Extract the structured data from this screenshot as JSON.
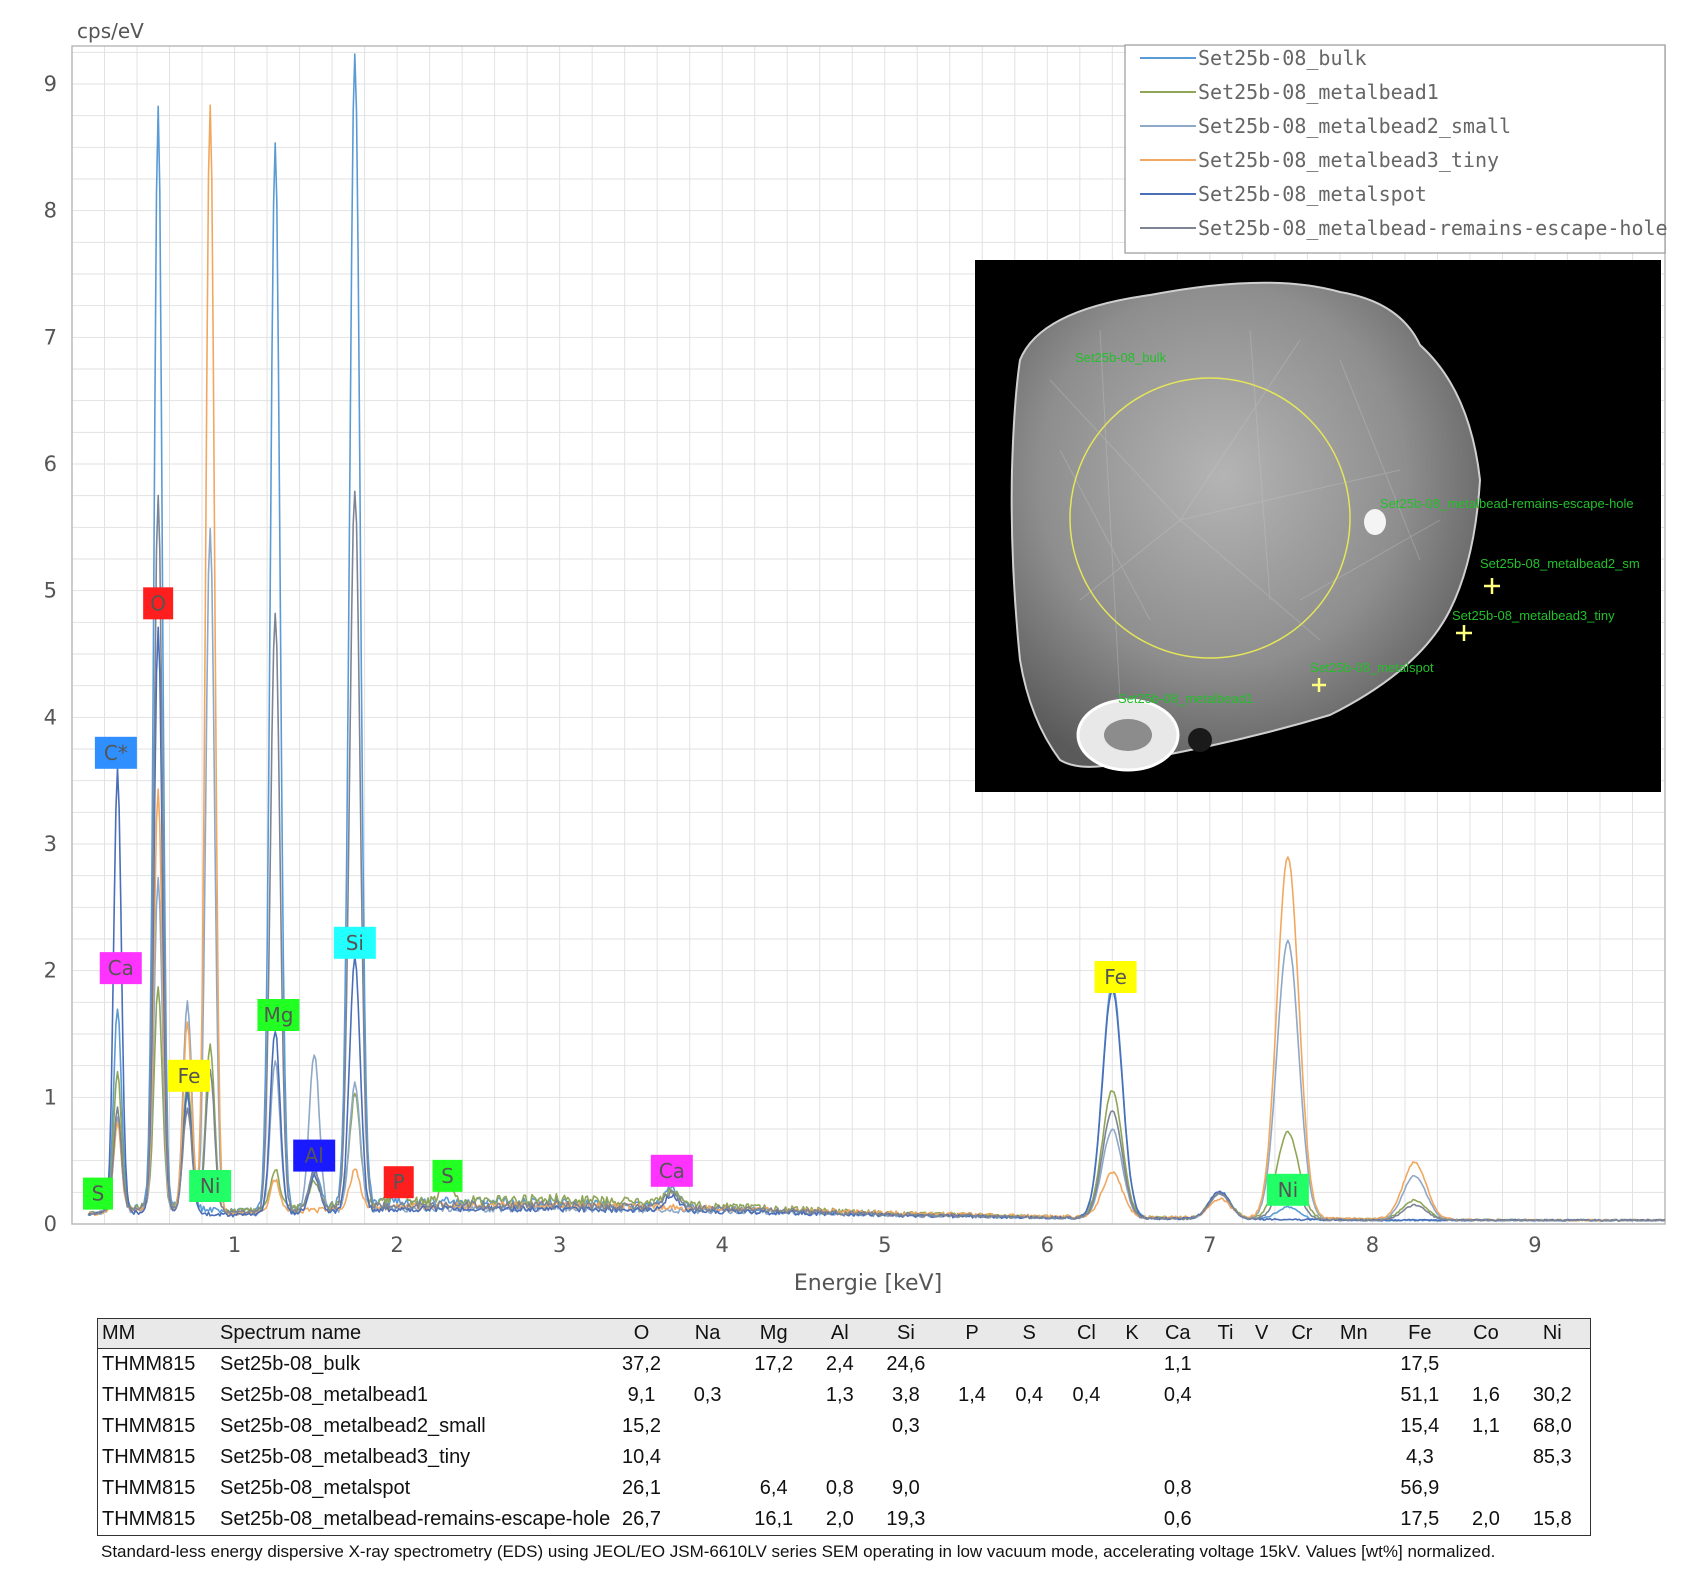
{
  "colors": {
    "series": [
      "#5b9bd5",
      "#8fa558",
      "#8ea8c8",
      "#f0a860",
      "#4a6fb8",
      "#7d8595"
    ],
    "labels": {
      "O": "#ff1e1e",
      "C*": "#2f8fff",
      "Ca": "#ff33ff",
      "Fe": "#ffff00",
      "Mg": "#22ff22",
      "Si": "#22ffff",
      "Al": "#1a1aff",
      "P": "#ff1e1e",
      "S": "#22ff22",
      "Ni": "#22ff66"
    }
  },
  "chart_data": {
    "type": "line",
    "ylabel": "cps/eV",
    "xlabel": "Energie [keV]",
    "xlim": [
      0.0,
      9.8
    ],
    "ylim": [
      0,
      9.3
    ],
    "xticks": [
      1,
      2,
      3,
      4,
      5,
      6,
      7,
      8,
      9
    ],
    "yticks": [
      0,
      1,
      2,
      3,
      4,
      5,
      6,
      7,
      8,
      9
    ],
    "grid": true,
    "legend_position": "top-right",
    "series": [
      {
        "name": "Set25b-08_bulk",
        "baseline": [
          [
            0.1,
            0.08
          ],
          [
            0.5,
            0.15
          ],
          [
            1.0,
            0.1
          ],
          [
            2.0,
            0.18
          ],
          [
            3.0,
            0.17
          ],
          [
            4.0,
            0.12
          ],
          [
            5.0,
            0.08
          ],
          [
            6.0,
            0.05
          ],
          [
            7.0,
            0.04
          ],
          [
            8.0,
            0.03
          ],
          [
            9.0,
            0.03
          ],
          [
            9.8,
            0.03
          ]
        ],
        "peaks": [
          [
            0.28,
            1.6
          ],
          [
            0.53,
            8.65
          ],
          [
            0.71,
            0.9
          ],
          [
            1.25,
            8.4
          ],
          [
            1.49,
            0.3
          ],
          [
            1.74,
            9.05
          ],
          [
            3.69,
            0.15
          ],
          [
            6.4,
            1.85
          ],
          [
            7.06,
            0.2
          ],
          [
            7.48,
            0.1
          ]
        ]
      },
      {
        "name": "Set25b-08_metalbead1",
        "baseline": [
          [
            0.1,
            0.08
          ],
          [
            0.5,
            0.15
          ],
          [
            1.0,
            0.1
          ],
          [
            2.0,
            0.18
          ],
          [
            3.0,
            0.2
          ],
          [
            4.0,
            0.14
          ],
          [
            5.0,
            0.09
          ],
          [
            6.0,
            0.06
          ],
          [
            7.0,
            0.05
          ],
          [
            8.0,
            0.04
          ],
          [
            9.0,
            0.03
          ],
          [
            9.8,
            0.03
          ]
        ],
        "peaks": [
          [
            0.28,
            1.1
          ],
          [
            0.53,
            1.7
          ],
          [
            0.71,
            1.0
          ],
          [
            0.85,
            1.3
          ],
          [
            1.25,
            0.3
          ],
          [
            1.49,
            0.2
          ],
          [
            1.74,
            0.85
          ],
          [
            2.01,
            0.12
          ],
          [
            2.31,
            0.15
          ],
          [
            3.69,
            0.1
          ],
          [
            6.4,
            1.0
          ],
          [
            7.06,
            0.2
          ],
          [
            7.48,
            0.68
          ],
          [
            8.26,
            0.15
          ]
        ]
      },
      {
        "name": "Set25b-08_metalbead2_small",
        "baseline": [
          [
            0.1,
            0.08
          ],
          [
            0.5,
            0.12
          ],
          [
            1.0,
            0.08
          ],
          [
            2.0,
            0.12
          ],
          [
            3.0,
            0.12
          ],
          [
            4.0,
            0.1
          ],
          [
            5.0,
            0.07
          ],
          [
            6.0,
            0.05
          ],
          [
            7.0,
            0.04
          ],
          [
            8.0,
            0.03
          ],
          [
            9.0,
            0.03
          ],
          [
            9.8,
            0.03
          ]
        ],
        "peaks": [
          [
            0.28,
            0.75
          ],
          [
            0.53,
            2.6
          ],
          [
            0.71,
            1.65
          ],
          [
            0.85,
            5.4
          ],
          [
            1.25,
            1.2
          ],
          [
            1.49,
            1.25
          ],
          [
            1.74,
            1.0
          ],
          [
            6.4,
            0.7
          ],
          [
            7.06,
            0.2
          ],
          [
            7.48,
            2.2
          ],
          [
            8.26,
            0.35
          ]
        ]
      },
      {
        "name": "Set25b-08_metalbead3_tiny",
        "baseline": [
          [
            0.1,
            0.08
          ],
          [
            0.5,
            0.12
          ],
          [
            1.0,
            0.08
          ],
          [
            2.0,
            0.14
          ],
          [
            3.0,
            0.15
          ],
          [
            4.0,
            0.12
          ],
          [
            5.0,
            0.09
          ],
          [
            6.0,
            0.06
          ],
          [
            7.0,
            0.05
          ],
          [
            8.0,
            0.04
          ],
          [
            9.0,
            0.03
          ],
          [
            9.8,
            0.03
          ]
        ],
        "peaks": [
          [
            0.28,
            0.7
          ],
          [
            0.53,
            3.3
          ],
          [
            0.71,
            1.5
          ],
          [
            0.85,
            8.75
          ],
          [
            1.25,
            0.25
          ],
          [
            1.74,
            0.3
          ],
          [
            6.4,
            0.35
          ],
          [
            7.06,
            0.15
          ],
          [
            7.48,
            2.85
          ],
          [
            8.26,
            0.45
          ]
        ]
      },
      {
        "name": "Set25b-08_metalspot",
        "baseline": [
          [
            0.1,
            0.08
          ],
          [
            0.5,
            0.1
          ],
          [
            1.0,
            0.07
          ],
          [
            2.0,
            0.12
          ],
          [
            3.0,
            0.12
          ],
          [
            4.0,
            0.1
          ],
          [
            5.0,
            0.07
          ],
          [
            6.0,
            0.05
          ],
          [
            7.0,
            0.04
          ],
          [
            8.0,
            0.03
          ],
          [
            9.0,
            0.03
          ],
          [
            9.8,
            0.03
          ]
        ],
        "peaks": [
          [
            0.28,
            3.5
          ],
          [
            0.53,
            4.6
          ],
          [
            0.71,
            0.95
          ],
          [
            1.25,
            1.45
          ],
          [
            1.49,
            0.3
          ],
          [
            1.74,
            2.0
          ],
          [
            3.69,
            0.12
          ],
          [
            6.4,
            1.8
          ],
          [
            7.06,
            0.22
          ]
        ]
      },
      {
        "name": "Set25b-08_metalbead-remains-escape-hole",
        "baseline": [
          [
            0.1,
            0.08
          ],
          [
            0.5,
            0.14
          ],
          [
            1.0,
            0.09
          ],
          [
            2.0,
            0.15
          ],
          [
            3.0,
            0.15
          ],
          [
            4.0,
            0.12
          ],
          [
            5.0,
            0.08
          ],
          [
            6.0,
            0.05
          ],
          [
            7.0,
            0.04
          ],
          [
            8.0,
            0.03
          ],
          [
            9.0,
            0.03
          ],
          [
            9.8,
            0.03
          ]
        ],
        "peaks": [
          [
            0.28,
            0.8
          ],
          [
            0.53,
            5.6
          ],
          [
            0.71,
            0.8
          ],
          [
            0.85,
            1.1
          ],
          [
            1.25,
            4.7
          ],
          [
            1.49,
            0.3
          ],
          [
            1.74,
            5.65
          ],
          [
            3.69,
            0.12
          ],
          [
            6.4,
            0.85
          ],
          [
            7.06,
            0.2
          ],
          [
            7.48,
            0.35
          ],
          [
            8.26,
            0.12
          ]
        ]
      }
    ],
    "peak_labels": [
      {
        "text": "O",
        "x": 0.53,
        "y": 4.9
      },
      {
        "text": "C*",
        "x": 0.27,
        "y": 3.72
      },
      {
        "text": "Ca",
        "x": 0.3,
        "y": 2.02
      },
      {
        "text": "Fe",
        "x": 0.72,
        "y": 1.17
      },
      {
        "text": "Mg",
        "x": 1.27,
        "y": 1.65
      },
      {
        "text": "Si",
        "x": 1.74,
        "y": 2.22
      },
      {
        "text": "Al",
        "x": 1.49,
        "y": 0.54
      },
      {
        "text": "P",
        "x": 2.01,
        "y": 0.33
      },
      {
        "text": "S",
        "x": 2.31,
        "y": 0.38
      },
      {
        "text": "S",
        "x": 0.16,
        "y": 0.24
      },
      {
        "text": "Ni",
        "x": 0.85,
        "y": 0.3
      },
      {
        "text": "Ca",
        "x": 3.69,
        "y": 0.42
      },
      {
        "text": "Fe",
        "x": 6.42,
        "y": 1.95
      },
      {
        "text": "Ni",
        "x": 7.48,
        "y": 0.27
      }
    ]
  },
  "sem_image": {
    "labels": [
      "Set25b-08_bulk",
      "Set25b-08_metalbead-remains-escape-hole",
      "Set25b-08_metalbead2_sm",
      "Set25b-08_metalbead3_tiny",
      "Set25b-08_metalspot",
      "Set25b-08_metalbead1"
    ]
  },
  "table": {
    "headers": [
      "MM",
      "Spectrum name",
      "O",
      "Na",
      "Mg",
      "Al",
      "Si",
      "P",
      "S",
      "Cl",
      "K",
      "Ca",
      "Ti",
      "V",
      "Cr",
      "Mn",
      "Fe",
      "Co",
      "Ni"
    ],
    "rows": [
      [
        "THMM815",
        "Set25b-08_bulk",
        "37,2",
        "",
        "17,2",
        "2,4",
        "24,6",
        "",
        "",
        "",
        "",
        "1,1",
        "",
        "",
        "",
        "",
        "17,5",
        "",
        ""
      ],
      [
        "THMM815",
        "Set25b-08_metalbead1",
        "9,1",
        "0,3",
        "",
        "1,3",
        "3,8",
        "1,4",
        "0,4",
        "0,4",
        "",
        "0,4",
        "",
        "",
        "",
        "",
        "51,1",
        "1,6",
        "30,2"
      ],
      [
        "THMM815",
        "Set25b-08_metalbead2_small",
        "15,2",
        "",
        "",
        "",
        "0,3",
        "",
        "",
        "",
        "",
        "",
        "",
        "",
        "",
        "",
        "15,4",
        "1,1",
        "68,0"
      ],
      [
        "THMM815",
        "Set25b-08_metalbead3_tiny",
        "10,4",
        "",
        "",
        "",
        "",
        "",
        "",
        "",
        "",
        "",
        "",
        "",
        "",
        "",
        "4,3",
        "",
        "85,3"
      ],
      [
        "THMM815",
        "Set25b-08_metalspot",
        "26,1",
        "",
        "6,4",
        "0,8",
        "9,0",
        "",
        "",
        "",
        "",
        "0,8",
        "",
        "",
        "",
        "",
        "56,9",
        "",
        ""
      ],
      [
        "THMM815",
        "Set25b-08_metalbead-remains-escape-hole",
        "26,7",
        "",
        "16,1",
        "2,0",
        "19,3",
        "",
        "",
        "",
        "",
        "0,6",
        "",
        "",
        "",
        "",
        "17,5",
        "2,0",
        "15,8"
      ]
    ]
  },
  "caption": "Standard-less energy dispersive X-ray spectrometry (EDS) using JEOL/EO JSM-6610LV series SEM operating in low vacuum mode, accelerating voltage 15kV. Values [wt%] normalized."
}
